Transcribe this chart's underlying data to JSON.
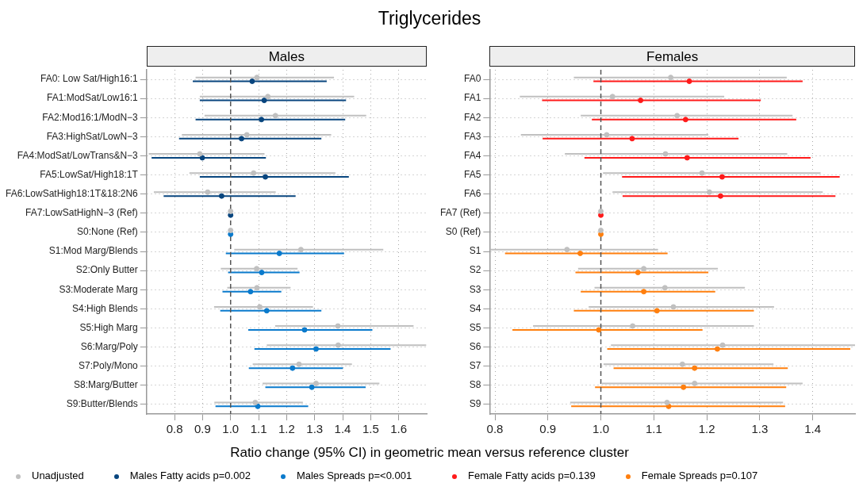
{
  "chart_data": [
    {
      "type": "scatter",
      "orientation": "horizontal",
      "title": "Triglycerides",
      "subtitle": "Males",
      "xlabel": "Ratio change (95% CI) in geometric mean versus reference cluster",
      "marker": "circle",
      "grid": true,
      "legend": "bottom",
      "categories": [
        "FA0: Low Sat/High16:1",
        "FA1:ModSat/Low16:1",
        "FA2:Mod16:1/ModN−3",
        "FA3:HighSat/LowN−3",
        "FA4:ModSat/LowTrans&N−3",
        "FA5:LowSat/High18:1T",
        "FA6:LowSatHigh18:1T&18:2N6",
        "FA7:LowSatHighN−3 (Ref)",
        "S0:None (Ref)",
        "S1:Mod Marg/Blends",
        "S2:Only Butter",
        "S3:Moderate Marg",
        "S4:High Blends",
        "S5:High Marg",
        "S6:Marg/Poly",
        "S7:Poly/Mono",
        "S8:Marg/Butter",
        "S9:Butter/Blends"
      ],
      "xlim": [
        0.7,
        1.7
      ],
      "xticks": [
        0.8,
        0.9,
        {
          "value": 1,
          "label": "1.0"
        },
        1.1,
        1.2,
        1.3,
        1.4,
        1.5,
        1.6
      ],
      "ref_lines": [
        {
          "axis": "x",
          "value": 1,
          "color": "#555555",
          "line_style": "dashed"
        }
      ],
      "series": [
        {
          "name": "Unadjusted",
          "color": "#c0c0c0",
          "values": [
            1.094,
            1.133,
            1.16,
            1.058,
            0.89,
            1.082,
            0.918,
            1,
            1,
            1.251,
            1.093,
            1.094,
            1.104,
            1.383,
            1.384,
            1.244,
            1.305,
            1.088
          ],
          "errors": [
            [
              0.875,
              1.369
            ],
            [
              0.89,
              1.441
            ],
            [
              0.907,
              1.484
            ],
            [
              0.826,
              1.359
            ],
            [
              0.708,
              1.121
            ],
            [
              0.853,
              1.374
            ],
            [
              0.726,
              1.161
            ],
            null,
            null,
            [
              1.013,
              1.545
            ],
            [
              0.965,
              1.239
            ],
            [
              0.988,
              1.214
            ],
            [
              0.941,
              1.294
            ],
            [
              1.159,
              1.653
            ],
            [
              1.129,
              1.698
            ],
            [
              1.079,
              1.433
            ],
            [
              1.114,
              1.531
            ],
            [
              0.942,
              1.258
            ]
          ]
        },
        {
          "name": "Males Fatty acids p=0.002",
          "color": "#08457e",
          "values": [
            1.077,
            1.12,
            1.11,
            1.039,
            0.899,
            1.124,
            0.968,
            1,
            null,
            null,
            null,
            null,
            null,
            null,
            null,
            null,
            null,
            null
          ],
          "errors": [
            [
              0.865,
              1.343
            ],
            [
              0.89,
              1.412
            ],
            [
              0.875,
              1.409
            ],
            [
              0.816,
              1.324
            ],
            [
              0.718,
              1.126
            ],
            [
              0.89,
              1.422
            ],
            [
              0.761,
              1.232
            ],
            null,
            null,
            null,
            null,
            null,
            null,
            null,
            null,
            null,
            null,
            null
          ]
        },
        {
          "name": "Males Spreads p=<0.001",
          "color": "#0a7acc",
          "values": [
            null,
            null,
            null,
            null,
            null,
            null,
            null,
            null,
            1,
            1.174,
            1.111,
            1.071,
            1.129,
            1.264,
            1.305,
            1.221,
            1.29,
            1.097
          ],
          "errors": [
            null,
            null,
            null,
            null,
            null,
            null,
            null,
            null,
            null,
            [
              0.983,
              1.405
            ],
            [
              0.991,
              1.246
            ],
            [
              0.971,
              1.181
            ],
            [
              0.963,
              1.324
            ],
            [
              1.063,
              1.506
            ],
            [
              1.085,
              1.571
            ],
            [
              1.065,
              1.401
            ],
            [
              1.124,
              1.482
            ],
            [
              0.946,
              1.277
            ]
          ]
        }
      ]
    },
    {
      "type": "scatter",
      "orientation": "horizontal",
      "subtitle": "Females",
      "marker": "circle",
      "grid": true,
      "legend": "bottom",
      "categories": [
        "FA0",
        "FA1",
        "FA2",
        "FA3",
        "FA4",
        "FA5",
        "FA6",
        "FA7 (Ref)",
        "S0 (Ref)",
        "S1",
        "S2",
        "S3",
        "S4",
        "S5",
        "S6",
        "S7",
        "S8",
        "S9"
      ],
      "xlim": [
        0.79,
        1.48
      ],
      "xticks": [
        0.8,
        0.9,
        {
          "value": 1,
          "label": "1.0"
        },
        1.1,
        1.2,
        1.3,
        1.4
      ],
      "ref_lines": [
        {
          "axis": "x",
          "value": 1,
          "color": "#555555",
          "line_style": "dashed"
        }
      ],
      "series": [
        {
          "color": "#c0c0c0",
          "values": [
            1.132,
            1.022,
            1.144,
            1.011,
            1.122,
            1.191,
            1.205,
            1,
            1,
            0.936,
            1.081,
            1.121,
            1.137,
            1.06,
            1.23,
            1.154,
            1.177,
            1.125
          ],
          "errors": [
            [
              0.949,
              1.351
            ],
            [
              0.847,
              1.233
            ],
            [
              0.962,
              1.362
            ],
            [
              0.849,
              1.203
            ],
            [
              0.932,
              1.352
            ],
            [
              1.004,
              1.415
            ],
            [
              1.022,
              1.419
            ],
            null,
            null,
            [
              0.791,
              1.108
            ],
            [
              0.957,
              1.221
            ],
            [
              0.988,
              1.272
            ],
            [
              0.977,
              1.327
            ],
            [
              0.872,
              1.289
            ],
            [
              1.019,
              1.48
            ],
            [
              1.005,
              1.326
            ],
            [
              1.002,
              1.381
            ],
            [
              0.942,
              1.344
            ]
          ]
        },
        {
          "name": "Female Fatty acids p=0.139",
          "color": "#ff1a1a",
          "values": [
            1.167,
            1.075,
            1.16,
            1.059,
            1.163,
            1.229,
            1.226,
            1,
            null,
            null,
            null,
            null,
            null,
            null,
            null,
            null,
            null,
            null
          ],
          "errors": [
            [
              0.986,
              1.381
            ],
            [
              0.889,
              1.302
            ],
            [
              0.983,
              1.369
            ],
            [
              0.89,
              1.26
            ],
            [
              0.969,
              1.396
            ],
            [
              1.04,
              1.451
            ],
            [
              1.041,
              1.443
            ],
            null,
            null,
            null,
            null,
            null,
            null,
            null,
            null,
            null,
            null,
            null
          ]
        },
        {
          "name": "Female Spreads p=0.107",
          "color": "#ff7f0e",
          "values": [
            null,
            null,
            null,
            null,
            null,
            null,
            null,
            null,
            1,
            0.961,
            1.07,
            1.081,
            1.106,
            0.996,
            1.22,
            1.177,
            1.156,
            1.128
          ],
          "errors": [
            null,
            null,
            null,
            null,
            null,
            null,
            null,
            null,
            null,
            [
              0.819,
              1.126
            ],
            [
              0.952,
              1.203
            ],
            [
              0.962,
              1.216
            ],
            [
              0.949,
              1.289
            ],
            [
              0.833,
              1.192
            ],
            [
              1.012,
              1.471
            ],
            [
              1.024,
              1.353
            ],
            [
              0.989,
              1.35
            ],
            [
              0.944,
              1.348
            ]
          ]
        }
      ]
    }
  ]
}
